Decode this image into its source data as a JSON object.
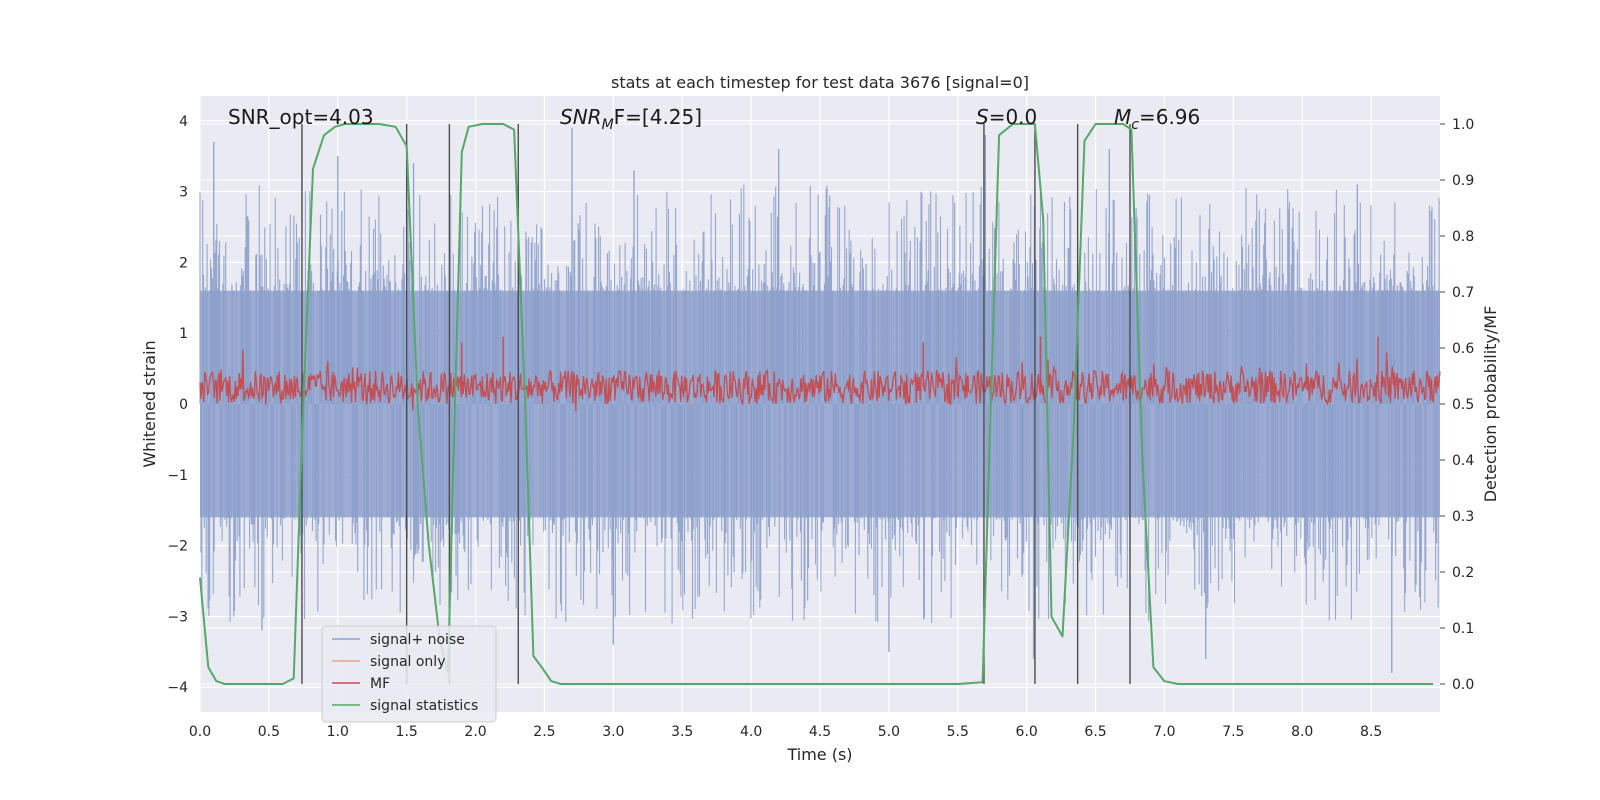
{
  "chart_data": {
    "type": "line",
    "title": "stats at each timestep for test data 3676 [signal=0]",
    "xlabel": "Time (s)",
    "ylabel_left": "Whitened strain",
    "ylabel_right": "Detection probability/MF",
    "xlim": [
      0.0,
      9.0
    ],
    "ylim_left": [
      -4.35,
      4.35
    ],
    "ylim_right": [
      -0.05,
      1.05
    ],
    "xticks": [
      "0.0",
      "0.5",
      "1.0",
      "1.5",
      "2.0",
      "2.5",
      "3.0",
      "3.5",
      "4.0",
      "4.5",
      "5.0",
      "5.5",
      "6.0",
      "6.5",
      "7.0",
      "7.5",
      "8.0",
      "8.5"
    ],
    "yticks_left": [
      "4",
      "3",
      "2",
      "1",
      "0",
      "−1",
      "−2",
      "−3",
      "−4"
    ],
    "yticks_right": [
      "1.0",
      "0.9",
      "0.8",
      "0.7",
      "0.6",
      "0.5",
      "0.4",
      "0.3",
      "0.2",
      "0.1",
      "0.0"
    ],
    "annotations": {
      "snr_opt": "SNR_opt=4.03",
      "snr_mf_main": "SNR",
      "snr_mf_sub": "M",
      "snr_mf_rest": "F=[4.25]",
      "s_main": "S",
      "s_rest": "=0.0",
      "mc_main": "M",
      "mc_sub": "c",
      "mc_rest": "=6.96"
    },
    "legend": {
      "location": "lower left",
      "entries": [
        {
          "label": "signal+ noise",
          "color": "#8da0cb"
        },
        {
          "label": "signal only",
          "color": "#e8a383"
        },
        {
          "label": "MF",
          "color": "#c44e52"
        },
        {
          "label": "signal statistics",
          "color": "#55a868"
        }
      ]
    },
    "series": [
      {
        "name": "signal statistics",
        "axis": "right",
        "color": "#55a868",
        "x": [
          0.0,
          0.06,
          0.12,
          0.18,
          0.3,
          0.45,
          0.6,
          0.68,
          0.75,
          0.82,
          0.9,
          0.98,
          1.05,
          1.15,
          1.3,
          1.42,
          1.5,
          1.58,
          1.66,
          1.74,
          1.8,
          1.84,
          1.9,
          1.95,
          2.05,
          2.2,
          2.28,
          2.36,
          2.42,
          2.48,
          2.55,
          2.62,
          2.7,
          3.0,
          4.0,
          5.0,
          5.5,
          5.68,
          5.74,
          5.8,
          5.9,
          6.0,
          6.06,
          6.12,
          6.18,
          6.26,
          6.34,
          6.42,
          6.5,
          6.6,
          6.7,
          6.76,
          6.84,
          6.92,
          7.0,
          7.1,
          7.5,
          8.0,
          8.5,
          8.95
        ],
        "y": [
          0.19,
          0.03,
          0.005,
          0.0,
          0.0,
          0.0,
          0.0,
          0.01,
          0.5,
          0.92,
          0.98,
          0.995,
          1.0,
          1.0,
          1.0,
          0.995,
          0.96,
          0.5,
          0.25,
          0.08,
          0.02,
          0.4,
          0.95,
          0.995,
          1.0,
          1.0,
          0.99,
          0.5,
          0.05,
          0.03,
          0.005,
          0.0,
          0.0,
          0.0,
          0.0,
          0.0,
          0.0,
          0.003,
          0.5,
          0.98,
          1.0,
          1.0,
          1.0,
          0.83,
          0.12,
          0.085,
          0.45,
          0.97,
          1.0,
          1.0,
          1.0,
          0.99,
          0.4,
          0.03,
          0.005,
          0.0,
          0.0,
          0.0,
          0.0,
          0.0
        ]
      },
      {
        "name": "signal+ noise",
        "axis": "left",
        "color": "#8da0cb",
        "envelope_level": 1.6,
        "spikes": [
          {
            "x": 0.1,
            "y": 3.7
          },
          {
            "x": 1.0,
            "y": 3.5
          },
          {
            "x": 1.55,
            "y": 3.4
          },
          {
            "x": 2.7,
            "y": 3.9
          },
          {
            "x": 3.15,
            "y": 3.3
          },
          {
            "x": 4.2,
            "y": 3.6
          },
          {
            "x": 5.7,
            "y": 3.8
          },
          {
            "x": 6.05,
            "y": -3.6
          },
          {
            "x": 6.6,
            "y": 3.6
          },
          {
            "x": 8.4,
            "y": 3.1
          },
          {
            "x": 8.65,
            "y": -3.8
          },
          {
            "x": 0.45,
            "y": -3.2
          },
          {
            "x": 3.0,
            "y": -3.4
          },
          {
            "x": 5.0,
            "y": -3.5
          },
          {
            "x": 7.3,
            "y": -3.6
          }
        ]
      },
      {
        "name": "MF",
        "axis": "right",
        "color": "#c44e52",
        "mean": 0.53,
        "spread": 0.03,
        "spikes": [
          {
            "x": 2.2,
            "y": 0.62
          },
          {
            "x": 5.25,
            "y": 0.61
          },
          {
            "x": 6.1,
            "y": 0.62
          },
          {
            "x": 8.55,
            "y": 0.62
          },
          {
            "x": 1.9,
            "y": 0.61
          }
        ]
      }
    ],
    "vertical_markers": [
      0.74,
      1.5,
      1.81,
      2.31,
      5.69,
      6.06,
      6.37,
      6.75
    ]
  }
}
